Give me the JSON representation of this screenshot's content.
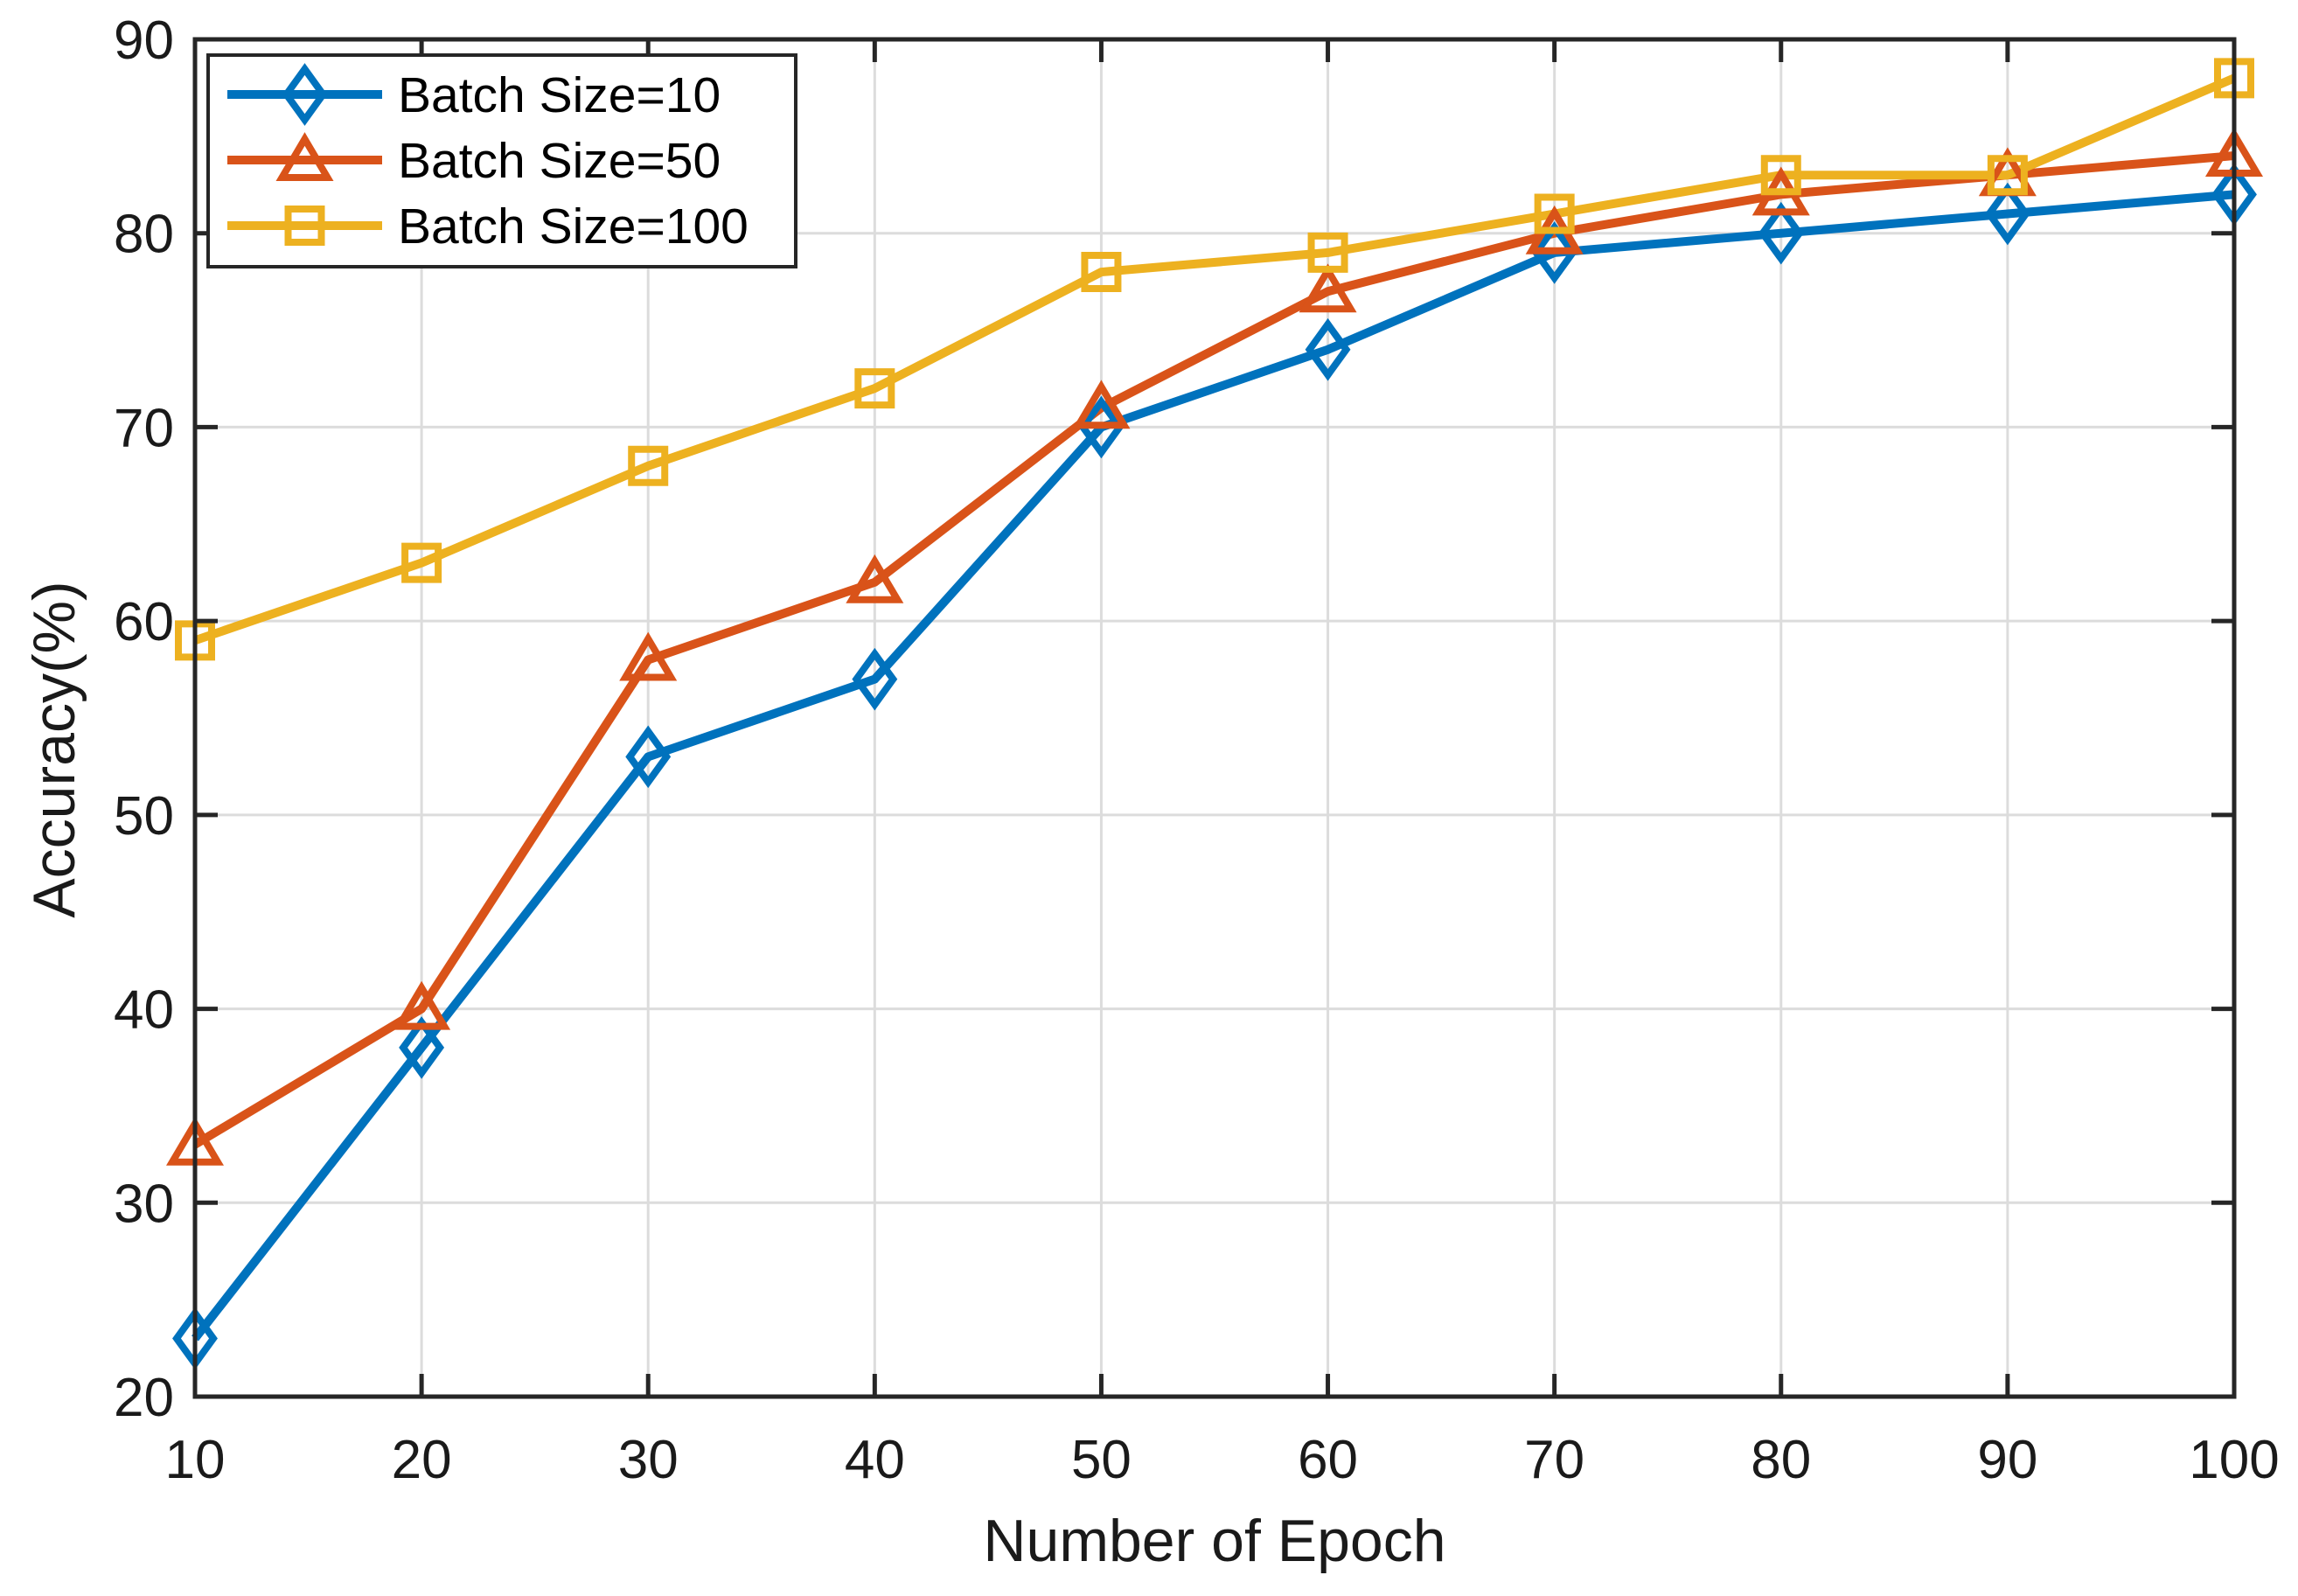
{
  "chart_data": {
    "type": "line",
    "title": "",
    "xlabel": "Number of Epoch",
    "ylabel": "Accuracy(%)",
    "x": [
      10,
      20,
      30,
      40,
      50,
      60,
      70,
      80,
      90,
      100
    ],
    "series": [
      {
        "name": "Batch Size=10",
        "color": "#0072BD",
        "marker": "diamond",
        "values": [
          23,
          38,
          53,
          57,
          70,
          74,
          79,
          80,
          81,
          82
        ]
      },
      {
        "name": "Batch Size=50",
        "color": "#D95319",
        "marker": "triangle",
        "values": [
          33,
          40,
          58,
          62,
          71,
          77,
          80,
          82,
          83,
          84
        ]
      },
      {
        "name": "Batch Size=100",
        "color": "#EDB120",
        "marker": "square",
        "values": [
          59,
          63,
          68,
          72,
          78,
          79,
          81,
          83,
          83,
          88
        ]
      }
    ],
    "xlim": [
      10,
      100
    ],
    "ylim": [
      20,
      90
    ],
    "xticks": [
      10,
      20,
      30,
      40,
      50,
      60,
      70,
      80,
      90,
      100
    ],
    "yticks": [
      20,
      30,
      40,
      50,
      60,
      70,
      80,
      90
    ],
    "grid": true,
    "legend_position": "top-left",
    "colors": {
      "axis": "#262626",
      "grid": "#DCDCDC",
      "text": "#1a1a1a",
      "background": "#FFFFFF",
      "legend_background": "#FFFFFF"
    }
  }
}
